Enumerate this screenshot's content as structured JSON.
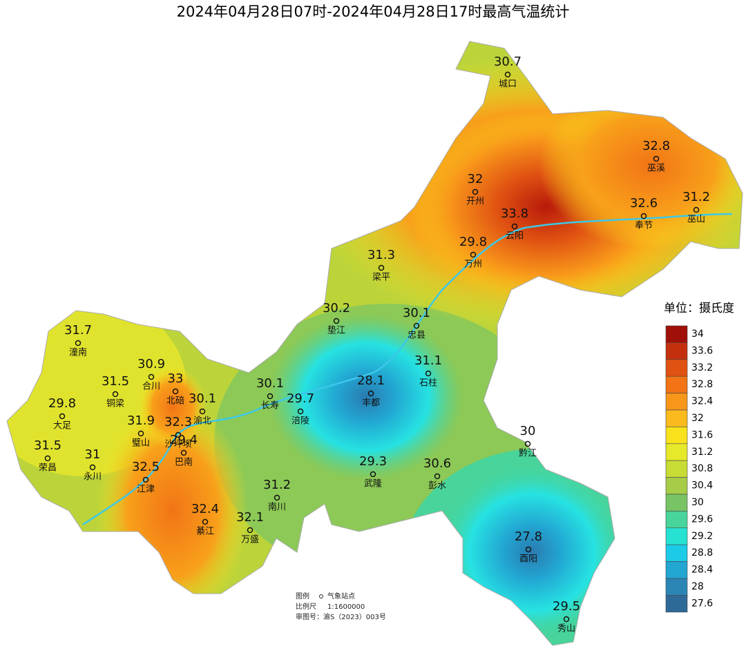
{
  "header": {
    "title": "2024年04月28日07时-2024年04月28日17时最高气温统计"
  },
  "stations": [
    {
      "name": "城口",
      "value": 30.7
    },
    {
      "name": "巫溪",
      "value": 32.8
    },
    {
      "name": "开州",
      "value": 32
    },
    {
      "name": "云阳",
      "value": 33.8
    },
    {
      "name": "奉节",
      "value": 32.6
    },
    {
      "name": "巫山",
      "value": 31.2
    },
    {
      "name": "梁平",
      "value": 31.3
    },
    {
      "name": "万州",
      "value": 29.8
    },
    {
      "name": "垫江",
      "value": 30.2
    },
    {
      "name": "忠县",
      "value": 30.1
    },
    {
      "name": "潼南",
      "value": 31.7
    },
    {
      "name": "合川",
      "value": 30.9
    },
    {
      "name": "石柱",
      "value": 31.1
    },
    {
      "name": "铜梁",
      "value": 31.5
    },
    {
      "name": "北碚",
      "value": 33
    },
    {
      "name": "渝北",
      "value": 30.1
    },
    {
      "name": "长寿",
      "value": 30.1
    },
    {
      "name": "丰都",
      "value": 28.1
    },
    {
      "name": "涪陵",
      "value": 29.7
    },
    {
      "name": "大足",
      "value": 29.8
    },
    {
      "name": "璧山",
      "value": 31.9
    },
    {
      "name": "沙坪坝",
      "value": 32.3
    },
    {
      "name": "荣昌",
      "value": 31.5
    },
    {
      "name": "永川",
      "value": 31
    },
    {
      "name": "巴南",
      "value": 29.4
    },
    {
      "name": "江津",
      "value": 32.5
    },
    {
      "name": "黔江",
      "value": 30
    },
    {
      "name": "武隆",
      "value": 29.3
    },
    {
      "name": "彭水",
      "value": 30.6
    },
    {
      "name": "南川",
      "value": 31.2
    },
    {
      "name": "綦江",
      "value": 32.4
    },
    {
      "name": "万盛",
      "value": 32.1
    },
    {
      "name": "酉阳",
      "value": 27.8
    },
    {
      "name": "秀山",
      "value": 29.5
    }
  ],
  "legend": {
    "title": "单位：摄氏度",
    "ticks": [
      34,
      33.6,
      33.2,
      32.8,
      32.4,
      32,
      31.6,
      31.2,
      30.8,
      30.4,
      30,
      29.6,
      29.2,
      28.8,
      28.4,
      28,
      27.6
    ],
    "colors": [
      "#a01008",
      "#c4300e",
      "#e05212",
      "#f27416",
      "#f8961a",
      "#fbba1e",
      "#f8e21c",
      "#e6e82a",
      "#c8dc36",
      "#a6cc48",
      "#78c464",
      "#48d49a",
      "#26e2d2",
      "#1ccbe8",
      "#22a6d2",
      "#2b86b6",
      "#2e6a98"
    ]
  },
  "footnote": {
    "legend_label": "图例",
    "station_label": "气象站点",
    "scale_label": "比例尺",
    "scale": "1:1600000",
    "approval": "审图号：渝S（2023）003号"
  }
}
